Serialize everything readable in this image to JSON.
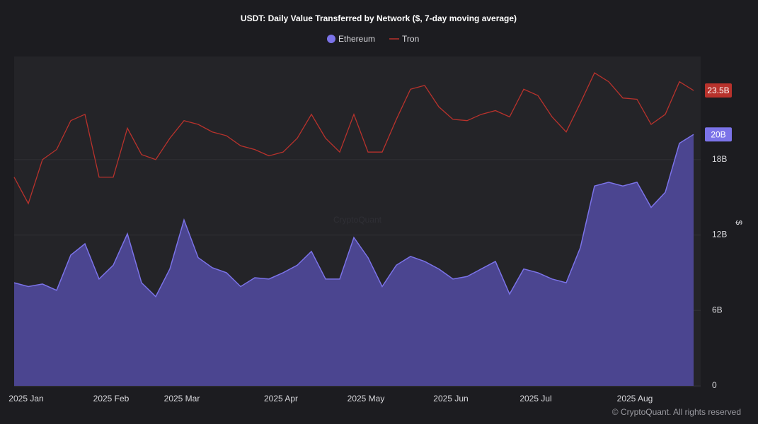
{
  "chart_data": {
    "type": "area-line",
    "title": "USDT: Daily Value Transferred by Network ($, 7-day moving average)",
    "y_label": "$",
    "watermark": "CryptoQuant",
    "footer": "© CryptoQuant. All rights reserved",
    "categories": [
      null,
      "2025 Jan",
      null,
      null,
      null,
      null,
      null,
      "2025 Feb",
      null,
      null,
      null,
      null,
      "2025 Mar",
      null,
      null,
      null,
      null,
      null,
      null,
      "2025 Apr",
      null,
      null,
      null,
      null,
      null,
      "2025 May",
      null,
      null,
      null,
      null,
      null,
      "2025 Jun",
      null,
      null,
      null,
      null,
      null,
      "2025 Jul",
      null,
      null,
      null,
      null,
      null,
      null,
      "2025 Aug",
      null,
      null,
      null,
      null
    ],
    "series": [
      {
        "name": "Ethereum",
        "type": "area",
        "color": "#7b73e8",
        "values": [
          8.2,
          7.9,
          8.1,
          7.6,
          10.4,
          11.3,
          8.5,
          9.6,
          12.1,
          8.2,
          7.1,
          9.3,
          13.2,
          10.2,
          9.4,
          9.0,
          7.9,
          8.6,
          8.5,
          9.0,
          9.6,
          10.7,
          8.5,
          8.5,
          11.8,
          10.2,
          7.9,
          9.6,
          10.3,
          9.9,
          9.3,
          8.5,
          8.7,
          9.3,
          9.9,
          7.3,
          9.3,
          9.0,
          8.5,
          8.2,
          11.0,
          15.9,
          16.2,
          15.9,
          16.2,
          14.2,
          15.4,
          19.3,
          20
        ],
        "value_labels": [
          null,
          null,
          null,
          null,
          null,
          null,
          null,
          null,
          null,
          null,
          null,
          null,
          null,
          null,
          null,
          null,
          null,
          null,
          null,
          null,
          null,
          null,
          null,
          null,
          null,
          null,
          null,
          null,
          null,
          null,
          null,
          null,
          null,
          null,
          null,
          null,
          null,
          null,
          null,
          null,
          null,
          null,
          null,
          null,
          null,
          null,
          null,
          null,
          "20B"
        ]
      },
      {
        "name": "Tron",
        "type": "line",
        "color": "#b8322c",
        "values": [
          16.6,
          14.5,
          18.0,
          18.8,
          21.1,
          21.6,
          16.6,
          16.6,
          20.5,
          18.4,
          18.0,
          19.7,
          21.1,
          20.8,
          20.2,
          19.9,
          19.1,
          18.8,
          18.3,
          18.6,
          19.7,
          21.6,
          19.7,
          18.6,
          21.6,
          18.6,
          18.6,
          21.2,
          23.6,
          23.9,
          22.2,
          21.2,
          21.1,
          21.6,
          21.9,
          21.4,
          23.6,
          23.1,
          21.4,
          20.2,
          22.5,
          24.9,
          24.2,
          22.9,
          22.8,
          20.8,
          21.6,
          24.2,
          23.5
        ],
        "value_labels": [
          null,
          null,
          null,
          null,
          null,
          null,
          null,
          null,
          null,
          null,
          null,
          null,
          null,
          null,
          null,
          null,
          null,
          null,
          null,
          null,
          null,
          null,
          null,
          null,
          null,
          null,
          null,
          null,
          null,
          null,
          null,
          null,
          null,
          null,
          null,
          null,
          null,
          null,
          null,
          null,
          null,
          null,
          null,
          null,
          null,
          null,
          null,
          null,
          "23.5B"
        ]
      }
    ],
    "ylim": [
      0,
      26.2
    ],
    "yticks": [
      0,
      {
        "value": 6,
        "label": "6B"
      },
      {
        "value": 12,
        "label": "12B"
      },
      {
        "value": 18,
        "label": "18B"
      }
    ],
    "grid": true,
    "legend": "top"
  }
}
